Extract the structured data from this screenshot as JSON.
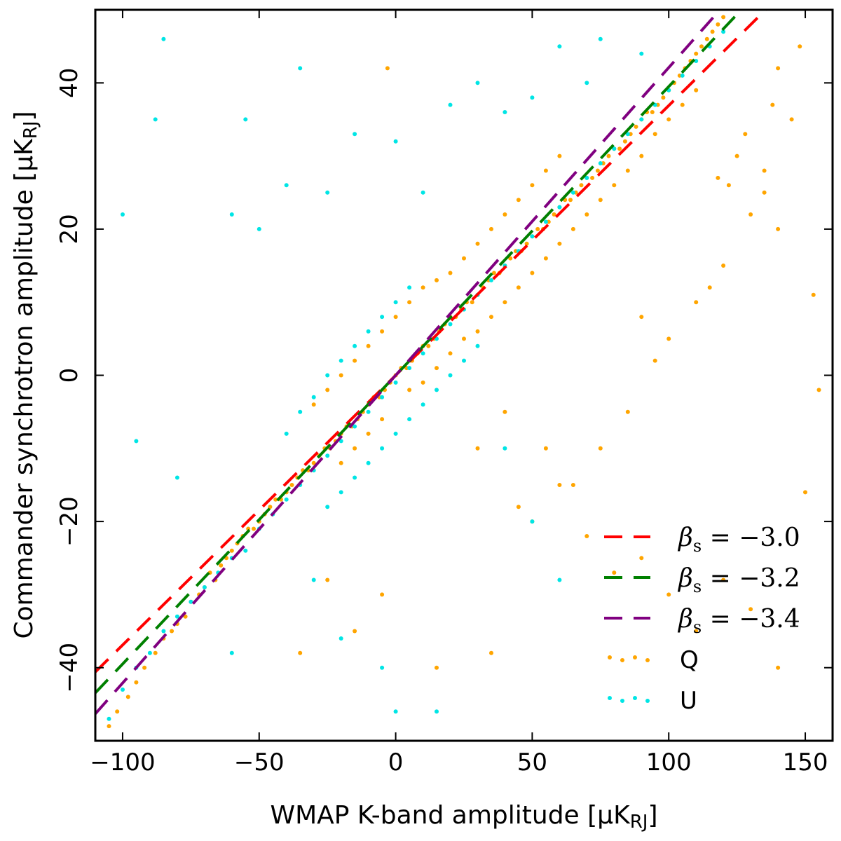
{
  "chart_data": {
    "type": "scatter",
    "xlabel": "WMAP K-band amplitude [μK_RJ]",
    "ylabel": "Commander synchrotron amplitude [μK_RJ]",
    "xlim": [
      -110,
      160
    ],
    "ylim": [
      -50,
      50
    ],
    "xticks": [
      -100,
      -50,
      0,
      50,
      100,
      150
    ],
    "yticks": [
      -40,
      -20,
      0,
      20,
      40
    ],
    "xtick_labels": [
      "−100",
      "−50",
      "0",
      "50",
      "100",
      "150"
    ],
    "ytick_labels": [
      "−40",
      "−20",
      "0",
      "20",
      "40"
    ],
    "legend_position": "bottom-right",
    "lines": [
      {
        "name": "βs = −3.0",
        "label_prefix": "β",
        "label_sub": "s",
        "label_value": " = −3.0",
        "slope": 0.369,
        "style": "dashed",
        "color": "#ff0000"
      },
      {
        "name": "βs = −3.2",
        "label_prefix": "β",
        "label_sub": "s",
        "label_value": " = −3.2",
        "slope": 0.395,
        "style": "dashed",
        "color": "#008000"
      },
      {
        "name": "βs = −3.4",
        "label_prefix": "β",
        "label_sub": "s",
        "label_value": " = −3.4",
        "slope": 0.421,
        "style": "dashed",
        "color": "#800080"
      }
    ],
    "series": [
      {
        "name": "Q",
        "color": "#ffa500",
        "points": [
          [
            -105,
            -48
          ],
          [
            -102,
            -46
          ],
          [
            -98,
            -44
          ],
          [
            -95,
            -42
          ],
          [
            -92,
            -40
          ],
          [
            -88,
            -38
          ],
          [
            -85,
            -36
          ],
          [
            -82,
            -35
          ],
          [
            -80,
            -34
          ],
          [
            -77,
            -33
          ],
          [
            -75,
            -31
          ],
          [
            -72,
            -30
          ],
          [
            -70,
            -29
          ],
          [
            -68,
            -27
          ],
          [
            -66,
            -28
          ],
          [
            -64,
            -26
          ],
          [
            -62,
            -25
          ],
          [
            -60,
            -24
          ],
          [
            -58,
            -23
          ],
          [
            -56,
            -22
          ],
          [
            -54,
            -21
          ],
          [
            -52,
            -21
          ],
          [
            -50,
            -20
          ],
          [
            -48,
            -19
          ],
          [
            -46,
            -18
          ],
          [
            -44,
            -17
          ],
          [
            -42,
            -17
          ],
          [
            -40,
            -16
          ],
          [
            -38,
            -15
          ],
          [
            -36,
            -14
          ],
          [
            -34,
            -13
          ],
          [
            -32,
            -13
          ],
          [
            -30,
            -12
          ],
          [
            -28,
            -11
          ],
          [
            -26,
            -10
          ],
          [
            -24,
            -10
          ],
          [
            -22,
            -9
          ],
          [
            -20,
            -8
          ],
          [
            -18,
            -7
          ],
          [
            -16,
            -7
          ],
          [
            -14,
            -6
          ],
          [
            -12,
            -5
          ],
          [
            -10,
            -4
          ],
          [
            -8,
            -3
          ],
          [
            -6,
            -3
          ],
          [
            -4,
            -2
          ],
          [
            -2,
            -1
          ],
          [
            0,
            0
          ],
          [
            2,
            1
          ],
          [
            4,
            1
          ],
          [
            6,
            2
          ],
          [
            8,
            3
          ],
          [
            10,
            4
          ],
          [
            12,
            4
          ],
          [
            14,
            5
          ],
          [
            16,
            6
          ],
          [
            18,
            7
          ],
          [
            20,
            8
          ],
          [
            22,
            8
          ],
          [
            24,
            9
          ],
          [
            26,
            10
          ],
          [
            28,
            10
          ],
          [
            30,
            11
          ],
          [
            32,
            12
          ],
          [
            34,
            13
          ],
          [
            36,
            14
          ],
          [
            38,
            14
          ],
          [
            40,
            15
          ],
          [
            42,
            16
          ],
          [
            44,
            17
          ],
          [
            46,
            17
          ],
          [
            48,
            18
          ],
          [
            50,
            19
          ],
          [
            52,
            20
          ],
          [
            54,
            20
          ],
          [
            56,
            21
          ],
          [
            58,
            22
          ],
          [
            60,
            23
          ],
          [
            62,
            24
          ],
          [
            64,
            24
          ],
          [
            66,
            25
          ],
          [
            68,
            26
          ],
          [
            70,
            27
          ],
          [
            72,
            27
          ],
          [
            74,
            28
          ],
          [
            76,
            29
          ],
          [
            78,
            30
          ],
          [
            80,
            31
          ],
          [
            82,
            31
          ],
          [
            84,
            32
          ],
          [
            86,
            33
          ],
          [
            88,
            34
          ],
          [
            90,
            35
          ],
          [
            92,
            36
          ],
          [
            94,
            36
          ],
          [
            96,
            37
          ],
          [
            98,
            38
          ],
          [
            100,
            39
          ],
          [
            102,
            40
          ],
          [
            104,
            41
          ],
          [
            106,
            42
          ],
          [
            108,
            43
          ],
          [
            110,
            44
          ],
          [
            112,
            45
          ],
          [
            114,
            46
          ],
          [
            116,
            47
          ],
          [
            118,
            48
          ],
          [
            120,
            49
          ],
          [
            -20,
            -12
          ],
          [
            -15,
            -10
          ],
          [
            -10,
            -8
          ],
          [
            -5,
            -6
          ],
          [
            5,
            -2
          ],
          [
            10,
            -1
          ],
          [
            15,
            1
          ],
          [
            20,
            3
          ],
          [
            25,
            5
          ],
          [
            30,
            6
          ],
          [
            35,
            8
          ],
          [
            40,
            10
          ],
          [
            45,
            12
          ],
          [
            50,
            14
          ],
          [
            55,
            16
          ],
          [
            60,
            18
          ],
          [
            65,
            20
          ],
          [
            70,
            22
          ],
          [
            75,
            24
          ],
          [
            80,
            26
          ],
          [
            85,
            28
          ],
          [
            90,
            30
          ],
          [
            95,
            33
          ],
          [
            100,
            35
          ],
          [
            105,
            37
          ],
          [
            110,
            39
          ],
          [
            -30,
            -4
          ],
          [
            -25,
            -2
          ],
          [
            -20,
            0
          ],
          [
            -15,
            2
          ],
          [
            -10,
            4
          ],
          [
            -5,
            6
          ],
          [
            0,
            8
          ],
          [
            5,
            10
          ],
          [
            10,
            12
          ],
          [
            15,
            13
          ],
          [
            20,
            14
          ],
          [
            25,
            16
          ],
          [
            30,
            18
          ],
          [
            35,
            20
          ],
          [
            40,
            22
          ],
          [
            45,
            24
          ],
          [
            50,
            26
          ],
          [
            55,
            28
          ],
          [
            60,
            30
          ],
          [
            30,
            -10
          ],
          [
            40,
            -5
          ],
          [
            50,
            -20
          ],
          [
            60,
            -15
          ],
          [
            70,
            -22
          ],
          [
            80,
            -27
          ],
          [
            90,
            -25
          ],
          [
            100,
            -30
          ],
          [
            110,
            -35
          ],
          [
            120,
            -28
          ],
          [
            130,
            -32
          ],
          [
            140,
            -40
          ],
          [
            150,
            -16
          ],
          [
            155,
            -2
          ],
          [
            153,
            11
          ],
          [
            140,
            20
          ],
          [
            135,
            25
          ],
          [
            130,
            22
          ],
          [
            125,
            30
          ],
          [
            120,
            15
          ],
          [
            115,
            12
          ],
          [
            110,
            10
          ],
          [
            100,
            5
          ],
          [
            95,
            2
          ],
          [
            90,
            8
          ],
          [
            85,
            -5
          ],
          [
            75,
            -10
          ],
          [
            65,
            -15
          ],
          [
            55,
            -10
          ],
          [
            45,
            -18
          ],
          [
            35,
            -38
          ],
          [
            -5,
            -30
          ],
          [
            -15,
            -35
          ],
          [
            -25,
            -28
          ],
          [
            -35,
            -38
          ],
          [
            15,
            -40
          ],
          [
            -3,
            42
          ],
          [
            145,
            35
          ],
          [
            148,
            45
          ],
          [
            140,
            42
          ],
          [
            138,
            37
          ],
          [
            135,
            28
          ],
          [
            128,
            33
          ],
          [
            122,
            26
          ],
          [
            118,
            27
          ]
        ]
      },
      {
        "name": "U",
        "color": "#00e5e5",
        "points": [
          [
            -105,
            -47
          ],
          [
            -100,
            -43
          ],
          [
            -95,
            -40
          ],
          [
            -90,
            -38
          ],
          [
            -85,
            -35
          ],
          [
            -80,
            -33
          ],
          [
            -75,
            -31
          ],
          [
            -70,
            -29
          ],
          [
            -65,
            -27
          ],
          [
            -60,
            -25
          ],
          [
            -55,
            -24
          ],
          [
            -50,
            -21
          ],
          [
            -45,
            -19
          ],
          [
            -40,
            -17
          ],
          [
            -35,
            -15
          ],
          [
            -30,
            -13
          ],
          [
            -25,
            -11
          ],
          [
            -20,
            -9
          ],
          [
            -15,
            -7
          ],
          [
            -10,
            -5
          ],
          [
            -5,
            -3
          ],
          [
            0,
            -1
          ],
          [
            5,
            1
          ],
          [
            10,
            3
          ],
          [
            15,
            5
          ],
          [
            20,
            7
          ],
          [
            25,
            9
          ],
          [
            30,
            11
          ],
          [
            35,
            13
          ],
          [
            40,
            15
          ],
          [
            45,
            17
          ],
          [
            50,
            19
          ],
          [
            55,
            21
          ],
          [
            60,
            23
          ],
          [
            65,
            25
          ],
          [
            70,
            27
          ],
          [
            75,
            29
          ],
          [
            80,
            31
          ],
          [
            85,
            33
          ],
          [
            90,
            35
          ],
          [
            95,
            37
          ],
          [
            100,
            39
          ],
          [
            105,
            41
          ],
          [
            110,
            43
          ],
          [
            115,
            45
          ],
          [
            120,
            47
          ],
          [
            -40,
            -8
          ],
          [
            -35,
            -5
          ],
          [
            -30,
            -3
          ],
          [
            -25,
            0
          ],
          [
            -20,
            2
          ],
          [
            -15,
            4
          ],
          [
            -10,
            6
          ],
          [
            -5,
            8
          ],
          [
            0,
            10
          ],
          [
            5,
            12
          ],
          [
            -25,
            -18
          ],
          [
            -20,
            -16
          ],
          [
            -15,
            -14
          ],
          [
            -10,
            -12
          ],
          [
            -5,
            -10
          ],
          [
            0,
            -8
          ],
          [
            5,
            -6
          ],
          [
            10,
            -4
          ],
          [
            15,
            -2
          ],
          [
            20,
            0
          ],
          [
            25,
            2
          ],
          [
            30,
            4
          ],
          [
            -100,
            22
          ],
          [
            -85,
            46
          ],
          [
            -88,
            35
          ],
          [
            -55,
            35
          ],
          [
            -60,
            22
          ],
          [
            -50,
            20
          ],
          [
            -35,
            42
          ],
          [
            -25,
            25
          ],
          [
            -40,
            26
          ],
          [
            -15,
            33
          ],
          [
            0,
            32
          ],
          [
            10,
            25
          ],
          [
            20,
            37
          ],
          [
            30,
            40
          ],
          [
            40,
            36
          ],
          [
            50,
            38
          ],
          [
            60,
            45
          ],
          [
            70,
            40
          ],
          [
            75,
            46
          ],
          [
            60,
            -28
          ],
          [
            50,
            -20
          ],
          [
            40,
            -10
          ],
          [
            -60,
            -38
          ],
          [
            -80,
            -14
          ],
          [
            -95,
            -9
          ],
          [
            -5,
            -40
          ],
          [
            15,
            -46
          ],
          [
            -20,
            -36
          ],
          [
            -30,
            -28
          ],
          [
            0,
            -46
          ],
          [
            90,
            44
          ]
        ]
      }
    ]
  }
}
